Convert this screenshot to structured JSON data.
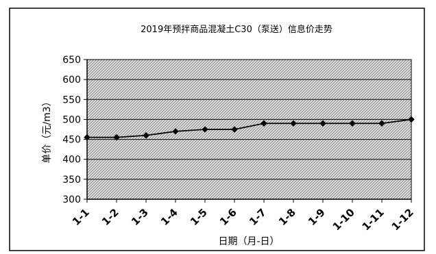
{
  "chart_data": {
    "type": "line",
    "title": "2019年预拌商品混凝土C30（泵送）信息价走势",
    "xlabel": "日期（月-日）",
    "ylabel": "单价（元/m3）",
    "categories": [
      "1-1",
      "1-2",
      "1-3",
      "1-4",
      "1-5",
      "1-6",
      "1-7",
      "1-8",
      "1-9",
      "1-10",
      "1-11",
      "1-12"
    ],
    "series": [
      {
        "values": [
          455,
          455,
          460,
          470,
          475,
          475,
          490,
          490,
          490,
          490,
          490,
          500
        ]
      }
    ],
    "ylim": [
      300,
      650
    ],
    "yticks": [
      300,
      350,
      400,
      450,
      500,
      550,
      600,
      650
    ],
    "grid": true,
    "plot_fill": "hatched-gray",
    "line_color": "#000000",
    "marker": "diamond"
  }
}
